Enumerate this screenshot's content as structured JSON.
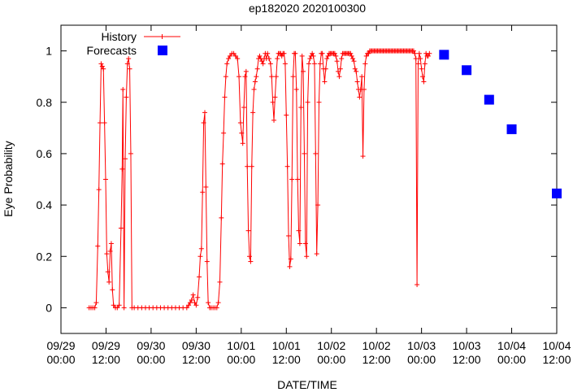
{
  "chart_data": {
    "type": "scatter",
    "title": "ep182020 2020100300",
    "xlabel": "DATE/TIME",
    "ylabel": "Eye Probability",
    "xlim_hours": [
      0,
      132
    ],
    "ylim": [
      -0.1,
      1.1
    ],
    "grid": false,
    "legend_position": "top-left",
    "yticks": [
      {
        "value": 0,
        "label": "0"
      },
      {
        "value": 0.2,
        "label": "0.2"
      },
      {
        "value": 0.4,
        "label": "0.4"
      },
      {
        "value": 0.6,
        "label": "0.6"
      },
      {
        "value": 0.8,
        "label": "0.8"
      },
      {
        "value": 1,
        "label": "1"
      }
    ],
    "xticks": [
      {
        "hour": 0,
        "date": "09/29",
        "time": "00:00"
      },
      {
        "hour": 12,
        "date": "09/29",
        "time": "12:00"
      },
      {
        "hour": 24,
        "date": "09/30",
        "time": "00:00"
      },
      {
        "hour": 36,
        "date": "09/30",
        "time": "12:00"
      },
      {
        "hour": 48,
        "date": "10/01",
        "time": "00:00"
      },
      {
        "hour": 60,
        "date": "10/01",
        "time": "12:00"
      },
      {
        "hour": 72,
        "date": "10/02",
        "time": "00:00"
      },
      {
        "hour": 84,
        "date": "10/02",
        "time": "12:00"
      },
      {
        "hour": 96,
        "date": "10/03",
        "time": "00:00"
      },
      {
        "hour": 108,
        "date": "10/03",
        "time": "12:00"
      },
      {
        "hour": 120,
        "date": "10/04",
        "time": "00:00"
      },
      {
        "hour": 132,
        "date": "10/04",
        "time": "12:00"
      }
    ],
    "series": [
      {
        "name": "History",
        "style": "line-with-plus",
        "color": "#ff0000",
        "points": [
          [
            7.5,
            0
          ],
          [
            8,
            0
          ],
          [
            8.5,
            0
          ],
          [
            9,
            0
          ],
          [
            9.4,
            0.02
          ],
          [
            9.8,
            0.24
          ],
          [
            10.1,
            0.46
          ],
          [
            10.4,
            0.72
          ],
          [
            10.7,
            0.95
          ],
          [
            11,
            0.94
          ],
          [
            11.3,
            0.93
          ],
          [
            11.6,
            0.72
          ],
          [
            11.9,
            0.5
          ],
          [
            12.2,
            0.21
          ],
          [
            12.5,
            0.14
          ],
          [
            12.8,
            0.1
          ],
          [
            13.1,
            0.22
          ],
          [
            13.4,
            0.25
          ],
          [
            13.7,
            0.07
          ],
          [
            14,
            0.01
          ],
          [
            14.5,
            0
          ],
          [
            15,
            0
          ],
          [
            15.5,
            0.01
          ],
          [
            16,
            0.31
          ],
          [
            16.3,
            0.54
          ],
          [
            16.5,
            0.85
          ],
          [
            16.8,
            0
          ],
          [
            17.1,
            0.58
          ],
          [
            17.4,
            0.82
          ],
          [
            17.7,
            0.95
          ],
          [
            18,
            0.97
          ],
          [
            18.3,
            0.93
          ],
          [
            18.6,
            0.6
          ],
          [
            18.9,
            0
          ],
          [
            19.5,
            0
          ],
          [
            20.5,
            0
          ],
          [
            21.5,
            0
          ],
          [
            22.5,
            0
          ],
          [
            23.5,
            0
          ],
          [
            24.5,
            0
          ],
          [
            25.5,
            0
          ],
          [
            26.5,
            0
          ],
          [
            27.5,
            0
          ],
          [
            28.5,
            0
          ],
          [
            29.5,
            0
          ],
          [
            30.5,
            0
          ],
          [
            31.5,
            0
          ],
          [
            32.5,
            0
          ],
          [
            33.5,
            0
          ],
          [
            34,
            0.01
          ],
          [
            34.4,
            0.02
          ],
          [
            34.8,
            0.03
          ],
          [
            35.2,
            0.05
          ],
          [
            35.6,
            0.02
          ],
          [
            36,
            0.01
          ],
          [
            36.4,
            0.04
          ],
          [
            36.8,
            0.12
          ],
          [
            37.1,
            0.2
          ],
          [
            37.4,
            0.23
          ],
          [
            37.7,
            0.45
          ],
          [
            38,
            0.72
          ],
          [
            38.3,
            0.76
          ],
          [
            38.6,
            0.47
          ],
          [
            38.9,
            0.18
          ],
          [
            39.2,
            0.02
          ],
          [
            39.6,
            0
          ],
          [
            40,
            0
          ],
          [
            40.5,
            0
          ],
          [
            41,
            0
          ],
          [
            41.5,
            0
          ],
          [
            41.9,
            0.02
          ],
          [
            42.3,
            0.1
          ],
          [
            42.7,
            0.35
          ],
          [
            43,
            0.56
          ],
          [
            43.3,
            0.68
          ],
          [
            43.6,
            0.82
          ],
          [
            43.9,
            0.9
          ],
          [
            44.2,
            0.95
          ],
          [
            44.6,
            0.97
          ],
          [
            45,
            0.98
          ],
          [
            45.5,
            0.99
          ],
          [
            46,
            0.99
          ],
          [
            46.5,
            0.98
          ],
          [
            47,
            0.97
          ],
          [
            47.4,
            0.9
          ],
          [
            47.8,
            0.72
          ],
          [
            48.1,
            0.68
          ],
          [
            48.4,
            0.64
          ],
          [
            48.7,
            0.78
          ],
          [
            49,
            0.9
          ],
          [
            49.3,
            0.92
          ],
          [
            49.6,
            0.55
          ],
          [
            49.9,
            0.3
          ],
          [
            50.2,
            0.2
          ],
          [
            50.5,
            0.18
          ],
          [
            50.8,
            0.55
          ],
          [
            51.1,
            0.76
          ],
          [
            51.4,
            0.85
          ],
          [
            51.7,
            0.88
          ],
          [
            52,
            0.9
          ],
          [
            52.3,
            0.93
          ],
          [
            52.6,
            0.97
          ],
          [
            52.9,
            0.98
          ],
          [
            53.2,
            0.97
          ],
          [
            53.5,
            0.96
          ],
          [
            53.8,
            0.95
          ],
          [
            54.1,
            0.97
          ],
          [
            54.4,
            0.99
          ],
          [
            54.7,
            0.97
          ],
          [
            55,
            0.99
          ],
          [
            55.4,
            0.97
          ],
          [
            55.8,
            0.95
          ],
          [
            56.1,
            0.9
          ],
          [
            56.4,
            0.8
          ],
          [
            56.7,
            0.73
          ],
          [
            57,
            0.82
          ],
          [
            57.3,
            0.9
          ],
          [
            57.6,
            0.97
          ],
          [
            57.9,
            0.99
          ],
          [
            58.2,
            0.99
          ],
          [
            58.5,
            0.99
          ],
          [
            58.8,
            0.98
          ],
          [
            59.1,
            0.99
          ],
          [
            59.4,
            0.99
          ],
          [
            59.7,
            0.95
          ],
          [
            60,
            0.75
          ],
          [
            60.3,
            0.55
          ],
          [
            60.6,
            0.28
          ],
          [
            60.9,
            0.16
          ],
          [
            61.2,
            0.19
          ],
          [
            61.5,
            0.5
          ],
          [
            61.8,
            0.9
          ],
          [
            62.1,
            0.99
          ],
          [
            62.4,
            0.99
          ],
          [
            62.7,
            0.85
          ],
          [
            63,
            0.5
          ],
          [
            63.3,
            0.3
          ],
          [
            63.6,
            0.25
          ],
          [
            63.9,
            0.78
          ],
          [
            64.2,
            0.98
          ],
          [
            64.5,
            0.92
          ],
          [
            64.8,
            0.6
          ],
          [
            65.1,
            0.25
          ],
          [
            65.4,
            0.2
          ],
          [
            65.7,
            0.8
          ],
          [
            66,
            0.95
          ],
          [
            66.3,
            0.97
          ],
          [
            66.6,
            0.98
          ],
          [
            66.9,
            0.99
          ],
          [
            67.2,
            0.98
          ],
          [
            67.5,
            0.95
          ],
          [
            67.8,
            0.6
          ],
          [
            68.1,
            0.21
          ],
          [
            68.4,
            0.4
          ],
          [
            68.7,
            0.8
          ],
          [
            69,
            0.95
          ],
          [
            69.3,
            0.99
          ],
          [
            69.6,
            0.99
          ],
          [
            69.9,
            0.93
          ],
          [
            70.2,
            0.88
          ],
          [
            70.5,
            0.93
          ],
          [
            70.8,
            0.97
          ],
          [
            71.1,
            0.98
          ],
          [
            71.4,
            0.99
          ],
          [
            71.7,
            0.99
          ],
          [
            72,
            0.99
          ],
          [
            72.3,
            0.99
          ],
          [
            72.6,
            0.99
          ],
          [
            72.9,
            0.99
          ],
          [
            73.2,
            0.98
          ],
          [
            73.5,
            0.96
          ],
          [
            73.8,
            0.92
          ],
          [
            74.1,
            0.9
          ],
          [
            74.4,
            0.93
          ],
          [
            74.7,
            0.97
          ],
          [
            75,
            0.99
          ],
          [
            75.3,
            0.99
          ],
          [
            75.6,
            0.99
          ],
          [
            75.9,
            0.99
          ],
          [
            76.2,
            0.99
          ],
          [
            76.5,
            0.99
          ],
          [
            76.8,
            0.99
          ],
          [
            77.1,
            0.99
          ],
          [
            77.4,
            0.98
          ],
          [
            77.7,
            0.97
          ],
          [
            78,
            0.96
          ],
          [
            78.3,
            0.93
          ],
          [
            78.6,
            0.92
          ],
          [
            78.9,
            0.88
          ],
          [
            79.2,
            0.85
          ],
          [
            79.5,
            0.82
          ],
          [
            79.8,
            0.85
          ],
          [
            80.1,
            0.9
          ],
          [
            80.4,
            0.59
          ],
          [
            80.7,
            0.85
          ],
          [
            81,
            0.95
          ],
          [
            81.3,
            0.98
          ],
          [
            81.6,
            0.99
          ],
          [
            81.9,
            0.99
          ],
          [
            82.2,
            1
          ],
          [
            82.5,
            1
          ],
          [
            82.8,
            1
          ],
          [
            83.1,
            1
          ],
          [
            83.4,
            1
          ],
          [
            83.7,
            1
          ],
          [
            84,
            1
          ],
          [
            84.3,
            1
          ],
          [
            84.6,
            1
          ],
          [
            84.9,
            1
          ],
          [
            85.2,
            1
          ],
          [
            85.5,
            1
          ],
          [
            85.8,
            1
          ],
          [
            86.1,
            1
          ],
          [
            86.4,
            1
          ],
          [
            86.7,
            1
          ],
          [
            87,
            1
          ],
          [
            87.3,
            1
          ],
          [
            87.6,
            1
          ],
          [
            87.9,
            1
          ],
          [
            88.2,
            1
          ],
          [
            88.5,
            1
          ],
          [
            88.8,
            1
          ],
          [
            89.1,
            1
          ],
          [
            89.4,
            1
          ],
          [
            89.7,
            1
          ],
          [
            90,
            1
          ],
          [
            90.3,
            1
          ],
          [
            90.6,
            1
          ],
          [
            90.9,
            1
          ],
          [
            91.2,
            1
          ],
          [
            91.5,
            1
          ],
          [
            91.8,
            1
          ],
          [
            92.1,
            1
          ],
          [
            92.4,
            1
          ],
          [
            92.7,
            1
          ],
          [
            93,
            1
          ],
          [
            93.3,
            1
          ],
          [
            93.6,
            1
          ],
          [
            93.9,
            1
          ],
          [
            94.2,
            0.99
          ],
          [
            94.5,
            0.97
          ],
          [
            94.8,
            0.09
          ],
          [
            95.1,
            0.95
          ],
          [
            95.4,
            0.99
          ],
          [
            95.7,
            0.97
          ],
          [
            96,
            0.93
          ],
          [
            96.3,
            0.9
          ],
          [
            96.6,
            0.88
          ],
          [
            96.9,
            0.95
          ],
          [
            97.2,
            0.99
          ],
          [
            97.5,
            0.98
          ],
          [
            97.8,
            0.98
          ],
          [
            98.1,
            0.99
          ]
        ]
      },
      {
        "name": "Forecasts",
        "style": "filled-square",
        "color": "#0000ff",
        "points": [
          [
            102,
            0.985
          ],
          [
            108,
            0.925
          ],
          [
            114,
            0.81
          ],
          [
            120,
            0.695
          ],
          [
            132,
            0.445
          ]
        ]
      }
    ]
  }
}
